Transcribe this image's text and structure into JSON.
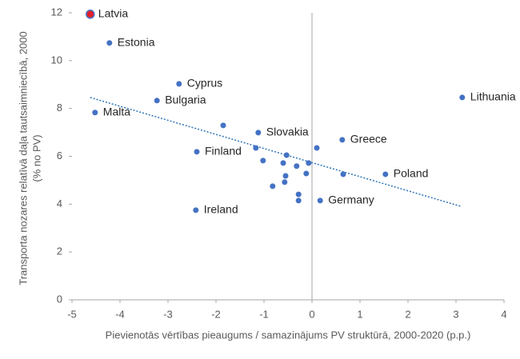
{
  "chart_data": {
    "type": "scatter",
    "xlabel": "Pievienotās vērtības pieaugums / samazinājums PV struktūrā, 2000-2020 (p.p.)",
    "ylabel": [
      "Transporta nozares relatīvā daļa tautsaimniecībā, 2000",
      "(% no PV)"
    ],
    "x": [
      -4.62,
      -4.22,
      -2.77,
      -3.23,
      -4.52,
      3.13,
      -1.12,
      0.63,
      -2.4,
      1.53,
      0.17,
      -2.42,
      -1.85,
      -1.17,
      -0.53,
      0.1,
      -1.02,
      -0.6,
      -0.32,
      -0.07,
      0.65,
      -0.55,
      -0.12,
      -0.57,
      -0.82,
      -0.28,
      -0.28
    ],
    "y": [
      11.94,
      10.74,
      9.03,
      8.33,
      7.83,
      8.46,
      6.99,
      6.69,
      6.19,
      5.25,
      4.15,
      3.75,
      7.29,
      6.35,
      6.05,
      6.35,
      5.82,
      5.72,
      5.59,
      5.72,
      5.25,
      5.18,
      5.28,
      4.92,
      4.75,
      4.41,
      4.15
    ],
    "labels": [
      "Latvia",
      "Estonia",
      "Cyprus",
      "Bulgaria",
      "Malta",
      "Lithuania",
      "Slovakia",
      "Greece",
      "Finland",
      "Poland",
      "Germany",
      "Ireland",
      null,
      null,
      null,
      null,
      null,
      null,
      null,
      null,
      null,
      null,
      null,
      null,
      null,
      null,
      null
    ],
    "color": "#4472c4",
    "highlight_index": 0,
    "highlight_color": "#e3202a",
    "trendline": {
      "x": [
        -4.62,
        3.1
      ],
      "y": [
        8.46,
        3.91
      ],
      "color": "#2e75b6"
    },
    "xlim": [
      -5,
      4
    ],
    "xticks": [
      -5,
      -4,
      -3,
      -2,
      -1,
      0,
      1,
      2,
      3,
      4
    ],
    "ylim": [
      0,
      12
    ],
    "yticks": [
      0,
      2,
      4,
      6,
      8,
      10,
      12
    ]
  }
}
